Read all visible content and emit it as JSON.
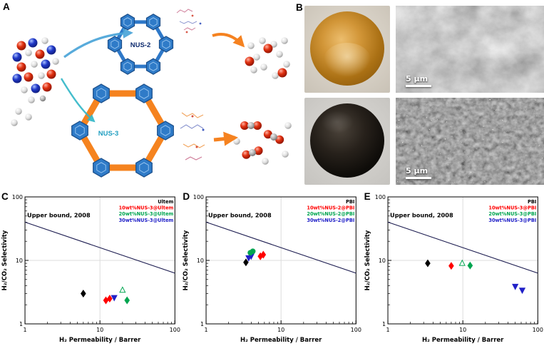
{
  "panels": {
    "a": {
      "label": "A",
      "nus2_label": "NUS-2",
      "nus3_label": "NUS-3"
    },
    "b": {
      "label": "B",
      "scale_bars": [
        "5 μm",
        "5 μm"
      ]
    },
    "c": {
      "label": "C"
    },
    "d": {
      "label": "D"
    },
    "e": {
      "label": "E"
    }
  },
  "chart_data": [
    {
      "panel": "C",
      "type": "scatter",
      "xscale": "log",
      "yscale": "log",
      "xlim": [
        1,
        100
      ],
      "ylim": [
        1,
        100
      ],
      "xticks": [
        1,
        10,
        100
      ],
      "yticks": [
        1,
        10,
        100
      ],
      "xlabel": "H₂ Permeability / Barrer",
      "ylabel": "H₂/CO₂ Selectivity",
      "annotation": "Upper bound, 2008",
      "upper_bound": {
        "x": [
          1,
          100
        ],
        "y": [
          40,
          6.3
        ]
      },
      "legend": [
        {
          "label": "Ultem",
          "color": "#000000"
        },
        {
          "label": "10wt%NUS-3@Ultem",
          "color": "#ff0000"
        },
        {
          "label": "20wt%NUS-3@Ultem",
          "color": "#00a550"
        },
        {
          "label": "30wt%NUS-3@Ultem",
          "color": "#2121c8"
        }
      ],
      "groups": [
        {
          "series": "Ultem",
          "marker": "diamond",
          "fill": true,
          "color": "#000000",
          "points": [
            [
              6,
              3.0
            ]
          ]
        },
        {
          "series": "10wt%NUS-3@Ultem",
          "marker": "diamond",
          "fill": true,
          "color": "#ff0000",
          "points": [
            [
              12,
              2.35
            ],
            [
              13.5,
              2.5
            ]
          ]
        },
        {
          "series": "30wt%NUS-3@Ultem",
          "marker": "triangle-down",
          "fill": true,
          "color": "#2121c8",
          "points": [
            [
              15.5,
              2.6
            ]
          ]
        },
        {
          "series": "20wt%NUS-3@Ultem",
          "marker": "triangle-up",
          "fill": false,
          "color": "#00a550",
          "points": [
            [
              20,
              3.4
            ]
          ]
        },
        {
          "series": "20wt%NUS-3@Ultem",
          "marker": "diamond",
          "fill": true,
          "color": "#00a550",
          "points": [
            [
              23,
              2.35
            ]
          ]
        }
      ]
    },
    {
      "panel": "D",
      "type": "scatter",
      "xscale": "log",
      "yscale": "log",
      "xlim": [
        1,
        100
      ],
      "ylim": [
        1,
        100
      ],
      "xticks": [
        1,
        10,
        100
      ],
      "yticks": [
        1,
        10,
        100
      ],
      "xlabel": "H₂ Permeability / Barrer",
      "ylabel": "H₂/CO₂ Selectivity",
      "annotation": "Upper bound, 2008",
      "upper_bound": {
        "x": [
          1,
          100
        ],
        "y": [
          40,
          6.3
        ]
      },
      "legend": [
        {
          "label": "PBI",
          "color": "#000000"
        },
        {
          "label": "10wt%NUS-2@PBI",
          "color": "#ff0000"
        },
        {
          "label": "20wt%NUS-2@PBI",
          "color": "#00a550"
        },
        {
          "label": "30wt%NUS-2@PBI",
          "color": "#2121c8"
        }
      ],
      "groups": [
        {
          "series": "PBI",
          "marker": "diamond",
          "fill": true,
          "color": "#000000",
          "points": [
            [
              3.4,
              9.3
            ]
          ]
        },
        {
          "series": "30wt%NUS-2@PBI",
          "marker": "triangle-down",
          "fill": true,
          "color": "#2121c8",
          "points": [
            [
              3.7,
              11.0
            ],
            [
              4.0,
              11.7
            ]
          ]
        },
        {
          "series": "20wt%NUS-2@PBI",
          "marker": "circle",
          "fill": true,
          "color": "#00a550",
          "points": [
            [
              3.9,
              13.2
            ],
            [
              4.2,
              13.9
            ]
          ]
        },
        {
          "series": "10wt%NUS-2@PBI",
          "marker": "diamond",
          "fill": true,
          "color": "#ff0000",
          "points": [
            [
              5.3,
              11.6
            ],
            [
              5.8,
              12.3
            ]
          ]
        }
      ]
    },
    {
      "panel": "E",
      "type": "scatter",
      "xscale": "log",
      "yscale": "log",
      "xlim": [
        1,
        100
      ],
      "ylim": [
        1,
        100
      ],
      "xticks": [
        1,
        10,
        100
      ],
      "yticks": [
        1,
        10,
        100
      ],
      "xlabel": "H₂ Permeability / Barrer",
      "ylabel": "H₂/CO₂ Selectivity",
      "annotation": "Upper bound, 2008",
      "upper_bound": {
        "x": [
          1,
          100
        ],
        "y": [
          40,
          6.3
        ]
      },
      "legend": [
        {
          "label": "PBI",
          "color": "#000000"
        },
        {
          "label": "10wt%NUS-3@PBI",
          "color": "#ff0000"
        },
        {
          "label": "20wt%NUS-3@PBI",
          "color": "#00a550"
        },
        {
          "label": "30wt%NUS-3@PBI",
          "color": "#2121c8"
        }
      ],
      "groups": [
        {
          "series": "PBI",
          "marker": "diamond",
          "fill": true,
          "color": "#000000",
          "points": [
            [
              3.4,
              9.0
            ]
          ]
        },
        {
          "series": "10wt%NUS-3@PBI",
          "marker": "diamond",
          "fill": true,
          "color": "#ff0000",
          "points": [
            [
              7,
              8.2
            ]
          ]
        },
        {
          "series": "20wt%NUS-3@PBI",
          "marker": "triangle-up",
          "fill": false,
          "color": "#00a550",
          "points": [
            [
              9.8,
              9.0
            ]
          ]
        },
        {
          "series": "20wt%NUS-3@PBI",
          "marker": "diamond",
          "fill": true,
          "color": "#00a550",
          "points": [
            [
              12.5,
              8.3
            ]
          ]
        },
        {
          "series": "30wt%NUS-3@PBI",
          "marker": "triangle-down",
          "fill": true,
          "color": "#2121c8",
          "points": [
            [
              50,
              3.9
            ],
            [
              62,
              3.4
            ]
          ]
        }
      ]
    }
  ]
}
